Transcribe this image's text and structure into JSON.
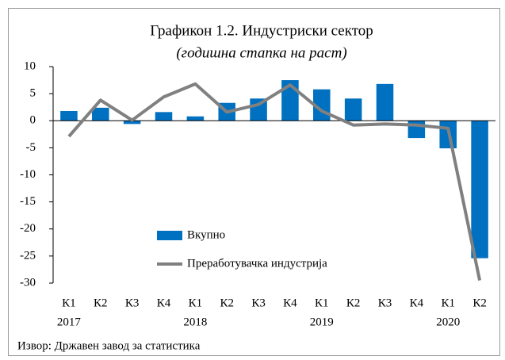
{
  "chart_data": {
    "type": "bar_line",
    "title": "Графикон 1.2. Индустриски сектор",
    "subtitle": "(годишна стапка на раст)",
    "categories": [
      "К1",
      "К2",
      "К3",
      "К4",
      "К1",
      "К2",
      "К3",
      "К4",
      "К1",
      "К2",
      "К3",
      "К4",
      "К1",
      "К2"
    ],
    "years": [
      "2017",
      null,
      null,
      null,
      "2018",
      null,
      null,
      null,
      "2019",
      null,
      null,
      null,
      "2020",
      null
    ],
    "series": [
      {
        "name": "Вкупно",
        "color": "#0070c0",
        "kind": "bar",
        "values": [
          1.8,
          2.4,
          -0.6,
          1.6,
          0.8,
          3.3,
          4.1,
          7.5,
          5.8,
          4.1,
          6.8,
          -3.2,
          -5.1,
          -25.4
        ]
      },
      {
        "name": "Преработувачка индустрија",
        "color": "#808080",
        "kind": "line",
        "values": [
          -2.9,
          3.8,
          0.1,
          4.4,
          6.8,
          1.6,
          3.0,
          6.6,
          1.8,
          -0.8,
          -0.6,
          -0.8,
          -1.4,
          -29.5
        ]
      }
    ],
    "ylim": [
      -30,
      10
    ],
    "yticks": [
      -30,
      -25,
      -20,
      -15,
      -10,
      -5,
      0,
      5,
      10
    ],
    "source": "Извор: Државен завод за статистика"
  }
}
